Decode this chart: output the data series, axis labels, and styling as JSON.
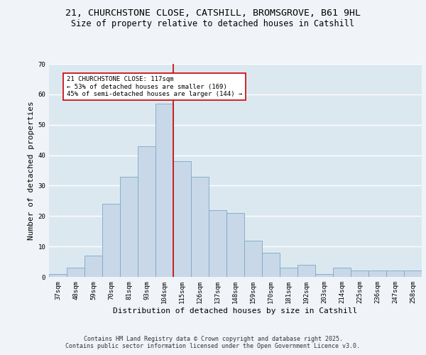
{
  "title_line1": "21, CHURCHSTONE CLOSE, CATSHILL, BROMSGROVE, B61 9HL",
  "title_line2": "Size of property relative to detached houses in Catshill",
  "xlabel": "Distribution of detached houses by size in Catshill",
  "ylabel": "Number of detached properties",
  "footer_line1": "Contains HM Land Registry data © Crown copyright and database right 2025.",
  "footer_line2": "Contains public sector information licensed under the Open Government Licence v3.0.",
  "bin_labels": [
    "37sqm",
    "48sqm",
    "59sqm",
    "70sqm",
    "81sqm",
    "93sqm",
    "104sqm",
    "115sqm",
    "126sqm",
    "137sqm",
    "148sqm",
    "159sqm",
    "170sqm",
    "181sqm",
    "192sqm",
    "203sqm",
    "214sqm",
    "225sqm",
    "236sqm",
    "247sqm",
    "258sqm"
  ],
  "bar_values": [
    1,
    3,
    7,
    24,
    33,
    43,
    57,
    38,
    33,
    22,
    21,
    12,
    8,
    3,
    4,
    1,
    3,
    2,
    2,
    2,
    2
  ],
  "bar_color": "#c8d8e8",
  "bar_edge_color": "#7aa8c8",
  "vline_color": "#cc0000",
  "vline_bin_index": 7,
  "annotation_text": "21 CHURCHSTONE CLOSE: 117sqm\n← 53% of detached houses are smaller (169)\n45% of semi-detached houses are larger (144) →",
  "annotation_box_color": "#ffffff",
  "annotation_box_edge_color": "#cc0000",
  "ylim": [
    0,
    70
  ],
  "yticks": [
    0,
    10,
    20,
    30,
    40,
    50,
    60,
    70
  ],
  "plot_bg_color": "#dce8f0",
  "fig_bg_color": "#f0f4f8",
  "grid_color": "#ffffff",
  "title_fontsize": 9.5,
  "subtitle_fontsize": 8.5,
  "axis_label_fontsize": 8,
  "tick_fontsize": 6.5,
  "annotation_fontsize": 6.5,
  "footer_fontsize": 6
}
